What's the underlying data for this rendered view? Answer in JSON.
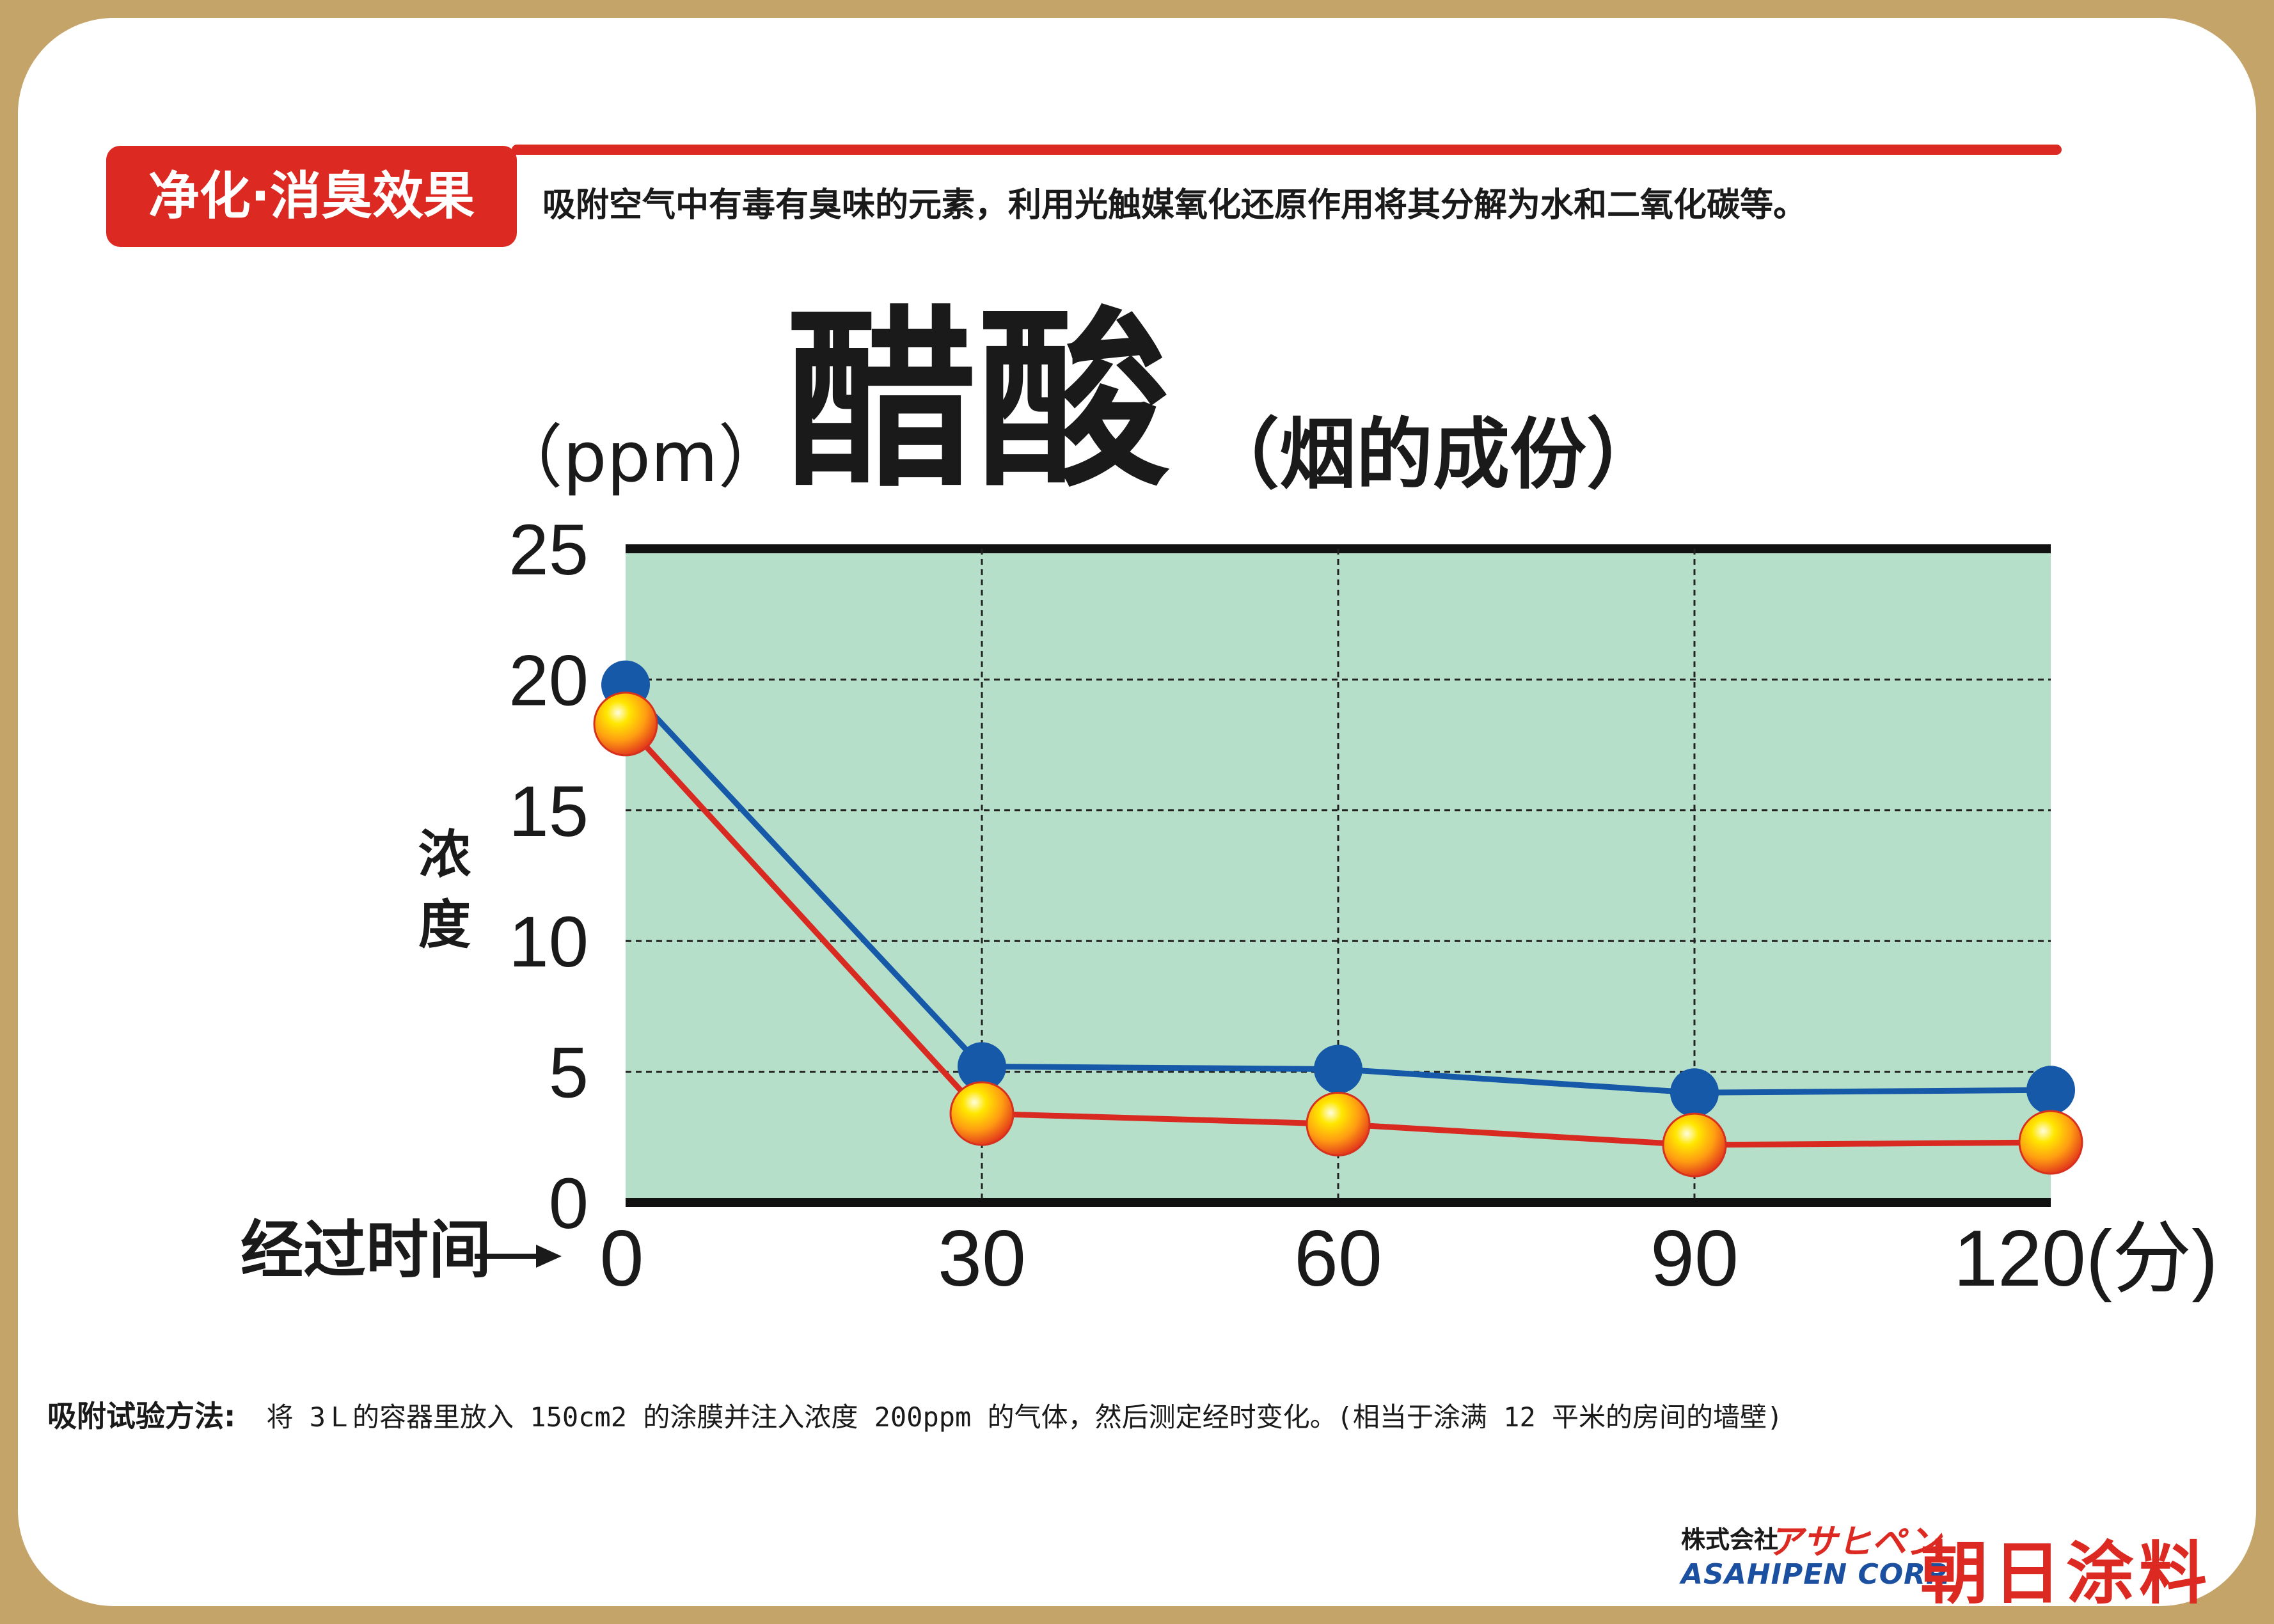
{
  "header": {
    "badge": "净化·消臭效果",
    "description": "吸附空气中有毒有臭味的元素，利用光触媒氧化还原作用将其分解为水和二氧化碳等。"
  },
  "chart_data": {
    "type": "line",
    "title": "醋酸",
    "subtitle": "（烟的成份）",
    "unit": "（ppm）",
    "ylabel": "浓度",
    "xlabel": "经过时间",
    "x": [
      0,
      30,
      60,
      90,
      120
    ],
    "x_tick_labels": [
      "0",
      "30",
      "60",
      "90",
      "120(分)"
    ],
    "y_ticks": [
      0,
      5,
      10,
      15,
      20,
      25
    ],
    "ylim": [
      0,
      25
    ],
    "xlim": [
      0,
      120
    ],
    "grid": true,
    "plot_background": "#b6dfc9",
    "series": [
      {
        "color": "#1659a8",
        "marker": "blue-dot",
        "values": [
          19.8,
          5.2,
          5.1,
          4.2,
          4.3
        ]
      },
      {
        "color": "#d92a22",
        "marker": "orange-ball",
        "values": [
          18.3,
          3.4,
          3.0,
          2.2,
          2.3
        ]
      }
    ]
  },
  "footer": {
    "method_label": "吸附试验方法:",
    "method_text": "将 3Ｌ的容器里放入 150cm2 的涂膜并注入浓度 200ppm 的气体，然后测定经时变化。(相当于涂满 12 平米的房间的墙壁)"
  },
  "brand": {
    "company_jp": "株式会社",
    "logo_kana": "アサヒペン",
    "company_en": "ASAHIPEN CORP.",
    "company_cn": "朝日涂料"
  }
}
